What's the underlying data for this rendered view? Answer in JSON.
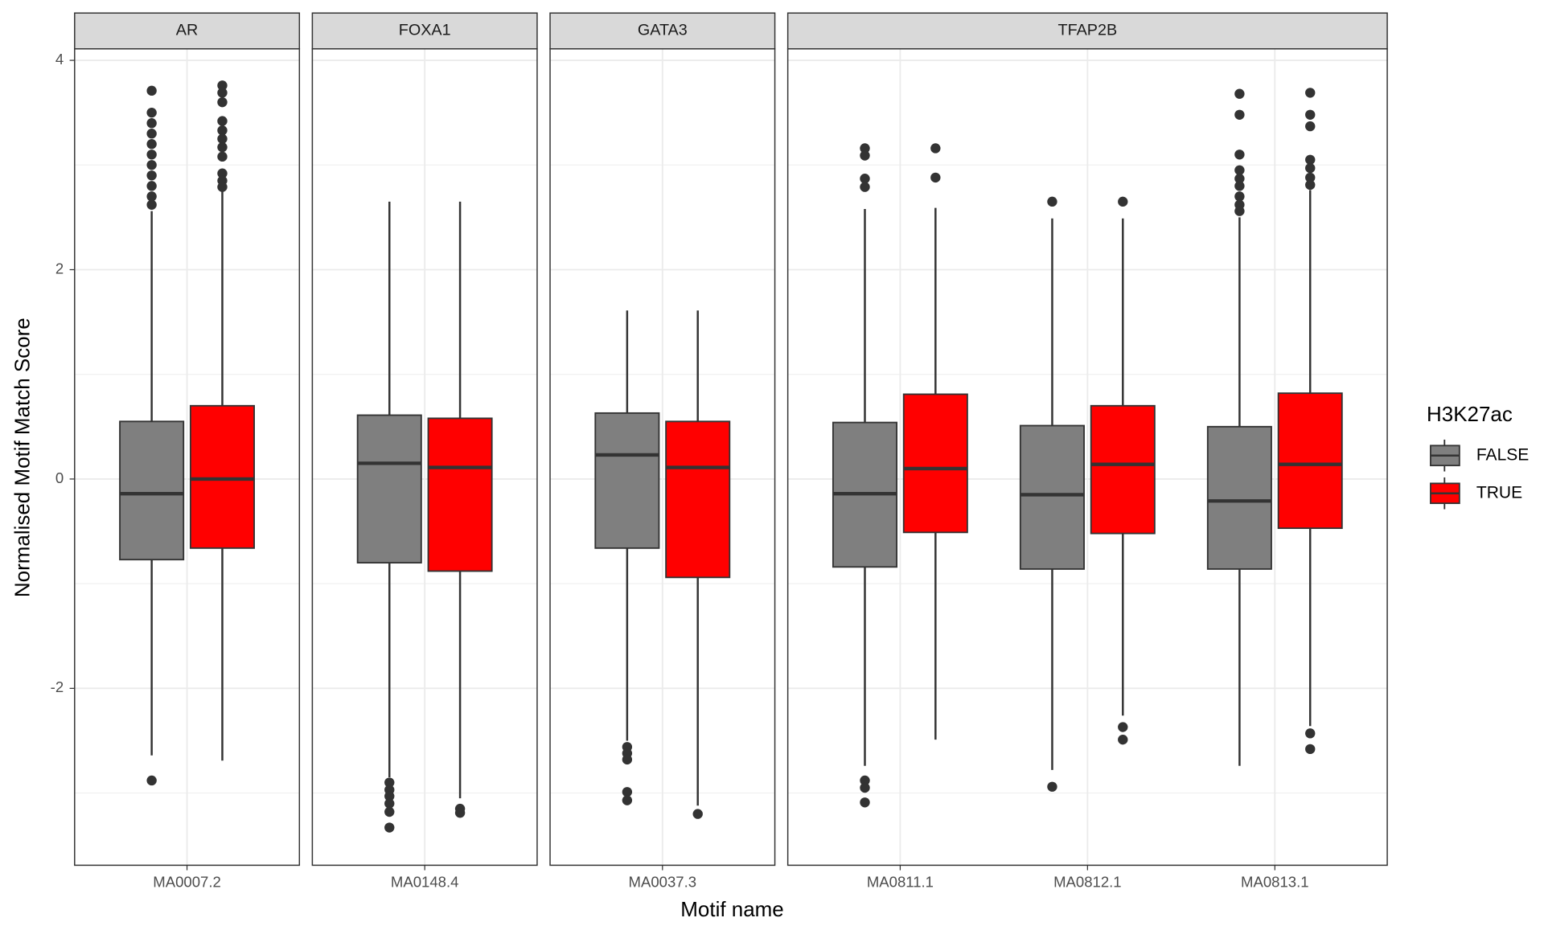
{
  "chart_data": {
    "type": "box",
    "x_label": "Motif name",
    "y_label": "Normalised Motif Match Score",
    "legend_title": "H3K27ac",
    "ylim": [
      -3.69,
      4.11
    ],
    "yticks": [
      -2,
      0,
      2,
      4
    ],
    "grid": true,
    "series": [
      {
        "name": "FALSE",
        "color": "#7f7f7f"
      },
      {
        "name": "TRUE",
        "color": "#ff0000"
      }
    ],
    "facets": [
      {
        "name": "AR",
        "categories": [
          "MA0007.2"
        ],
        "data": [
          [
            {
              "low": -2.64,
              "q1": -0.77,
              "median": -0.14,
              "q3": 0.55,
              "high": 2.56,
              "outliers": [
                3.71,
                3.5,
                3.4,
                3.3,
                3.2,
                3.1,
                3.0,
                2.9,
                2.8,
                2.7,
                2.62,
                -2.88
              ]
            }
          ],
          [
            {
              "low": -2.69,
              "q1": -0.66,
              "median": 0,
              "q3": 0.7,
              "high": 2.77,
              "outliers": [
                3.76,
                3.69,
                3.6,
                3.42,
                3.33,
                3.25,
                3.17,
                3.08,
                2.92,
                2.85,
                2.79
              ]
            }
          ]
        ]
      },
      {
        "name": "FOXA1",
        "categories": [
          "MA0148.4"
        ],
        "data": [
          [
            {
              "low": -2.85,
              "q1": -0.8,
              "median": 0.15,
              "q3": 0.61,
              "high": 2.65,
              "outliers": [
                -2.9,
                -2.97,
                -3.03,
                -3.1,
                -3.18,
                -3.33
              ]
            }
          ],
          [
            {
              "low": -3.05,
              "q1": -0.88,
              "median": 0.11,
              "q3": 0.58,
              "high": 2.65,
              "outliers": [
                -3.15,
                -3.19
              ]
            }
          ]
        ]
      },
      {
        "name": "GATA3",
        "categories": [
          "MA0037.3"
        ],
        "data": [
          [
            {
              "low": -2.5,
              "q1": -0.66,
              "median": 0.23,
              "q3": 0.63,
              "high": 1.61,
              "outliers": [
                -2.56,
                -2.62,
                -2.68,
                -2.99,
                -3.07
              ]
            }
          ],
          [
            {
              "low": -3.12,
              "q1": -0.94,
              "median": 0.11,
              "q3": 0.55,
              "high": 1.61,
              "outliers": [
                -3.2
              ]
            }
          ]
        ]
      },
      {
        "name": "TFAP2B",
        "categories": [
          "MA0811.1",
          "MA0812.1",
          "MA0813.1"
        ],
        "data": [
          [
            {
              "low": -2.74,
              "q1": -0.84,
              "median": -0.14,
              "q3": 0.54,
              "high": 2.58,
              "outliers": [
                3.16,
                3.09,
                2.87,
                2.79,
                -2.88,
                -2.95,
                -3.09
              ]
            },
            {
              "low": -2.78,
              "q1": -0.86,
              "median": -0.15,
              "q3": 0.51,
              "high": 2.49,
              "outliers": [
                2.65,
                -2.94
              ]
            },
            {
              "low": -2.74,
              "q1": -0.86,
              "median": -0.21,
              "q3": 0.5,
              "high": 2.5,
              "outliers": [
                3.68,
                3.48,
                3.1,
                2.95,
                2.87,
                2.8,
                2.7,
                2.62,
                2.56
              ]
            }
          ],
          [
            {
              "low": -2.49,
              "q1": -0.51,
              "median": 0.1,
              "q3": 0.81,
              "high": 2.59,
              "outliers": [
                3.16,
                2.88
              ]
            },
            {
              "low": -2.26,
              "q1": -0.52,
              "median": 0.14,
              "q3": 0.7,
              "high": 2.49,
              "outliers": [
                2.65,
                -2.37,
                -2.49
              ]
            },
            {
              "low": -2.36,
              "q1": -0.47,
              "median": 0.14,
              "q3": 0.82,
              "high": 2.76,
              "outliers": [
                3.69,
                3.48,
                3.37,
                3.05,
                2.97,
                2.88,
                2.81,
                -2.43,
                -2.58
              ]
            }
          ]
        ]
      }
    ]
  }
}
